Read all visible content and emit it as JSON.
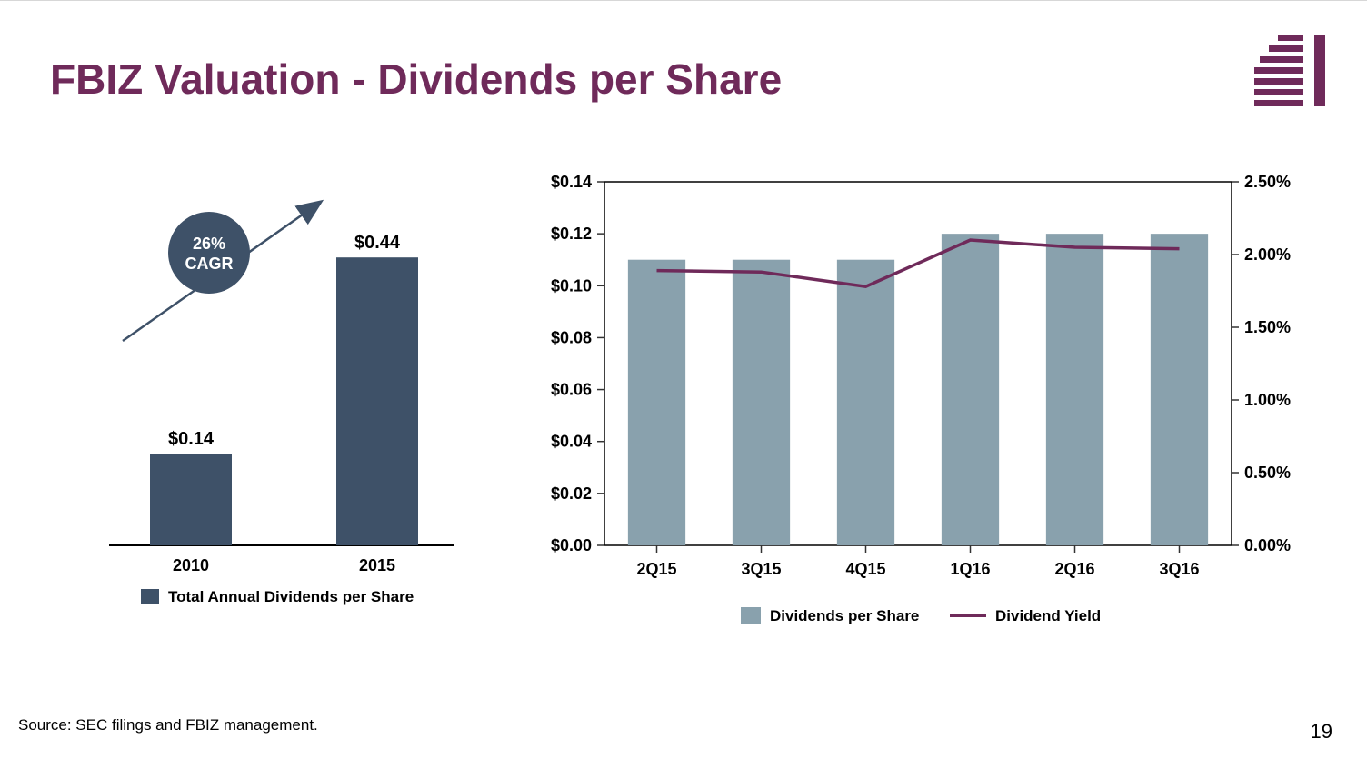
{
  "title": {
    "text": "FBIZ Valuation - Dividends per Share",
    "color": "#6f2a5a"
  },
  "source": "Source: SEC filings and FBIZ management.",
  "page_number": "19",
  "logo": {
    "color": "#6f2a5a"
  },
  "left_chart": {
    "type": "bar",
    "categories": [
      "2010",
      "2015"
    ],
    "values": [
      0.14,
      0.44
    ],
    "value_labels": [
      "$0.14",
      "$0.44"
    ],
    "bar_color": "#3e5168",
    "axis_color": "#000000",
    "label_fontsize": 18,
    "category_fontsize": 18,
    "value_label_fontsize": 20,
    "ylim": [
      0,
      0.5
    ],
    "callout": {
      "text_line1": "26%",
      "text_line2": "CAGR",
      "bubble_color": "#3e5168",
      "text_color": "#ffffff",
      "fontsize": 18,
      "arrow_color": "#3e5168"
    },
    "legend": {
      "label": "Total Annual Dividends per Share",
      "swatch_color": "#3e5168",
      "fontsize": 17
    }
  },
  "right_chart": {
    "type": "bar-line-dual-axis",
    "categories": [
      "2Q15",
      "3Q15",
      "4Q15",
      "1Q16",
      "2Q16",
      "3Q16"
    ],
    "bar_values": [
      0.11,
      0.11,
      0.11,
      0.12,
      0.12,
      0.12
    ],
    "bar_color": "#89a1ad",
    "line_values_pct": [
      1.89,
      1.88,
      1.78,
      2.1,
      2.05,
      2.04
    ],
    "line_color": "#6f2a5a",
    "line_width": 3.5,
    "left_axis": {
      "lim": [
        0,
        0.14
      ],
      "step": 0.02,
      "ticks": [
        "$0.00",
        "$0.02",
        "$0.04",
        "$0.06",
        "$0.08",
        "$0.10",
        "$0.12",
        "$0.14"
      ],
      "fontsize": 18
    },
    "right_axis": {
      "lim": [
        0,
        2.5
      ],
      "step": 0.5,
      "ticks": [
        "0.00%",
        "0.50%",
        "1.00%",
        "1.50%",
        "2.00%",
        "2.50%"
      ],
      "fontsize": 18
    },
    "category_fontsize": 18,
    "grid_color": "#333333",
    "border_color": "#000000",
    "legend": {
      "bar_label": "Dividends per Share",
      "line_label": "Dividend Yield",
      "fontsize": 17
    }
  }
}
